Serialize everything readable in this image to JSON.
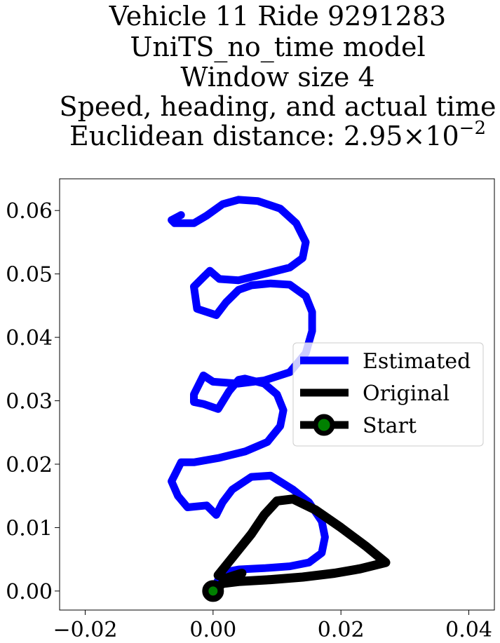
{
  "chart_data": {
    "type": "line",
    "title_lines": [
      "Vehicle 11 Ride 9291283",
      "UniTS_no_time model",
      "Window size 4",
      "Speed, heading, and actual time"
    ],
    "title_distance_prefix": "Euclidean distance: ",
    "title_distance_mantissa": "2.95",
    "title_distance_times": "×",
    "title_distance_base": "10",
    "title_distance_exponent": "−2",
    "xlabel": "",
    "ylabel": "",
    "xlim": [
      -0.024,
      0.044
    ],
    "ylim": [
      -0.003,
      0.065
    ],
    "x_ticks": [
      -0.02,
      0.0,
      0.02,
      0.04
    ],
    "x_tick_labels": [
      "−0.02",
      "0.00",
      "0.02",
      "0.04"
    ],
    "y_ticks": [
      0.0,
      0.01,
      0.02,
      0.03,
      0.04,
      0.05,
      0.06
    ],
    "y_tick_labels": [
      "0.00",
      "0.01",
      "0.02",
      "0.03",
      "0.04",
      "0.05",
      "0.06"
    ],
    "grid": false,
    "legend_position": "center-right",
    "series": [
      {
        "name": "Estimated",
        "color": "#0000ff",
        "points": [
          [
            0.0,
            0.0
          ],
          [
            0.001,
            0.0022
          ],
          [
            0.002,
            0.003
          ],
          [
            0.004,
            0.0034
          ],
          [
            0.008,
            0.0036
          ],
          [
            0.012,
            0.0039
          ],
          [
            0.015,
            0.0045
          ],
          [
            0.017,
            0.006
          ],
          [
            0.0175,
            0.0085
          ],
          [
            0.017,
            0.011
          ],
          [
            0.015,
            0.014
          ],
          [
            0.0125,
            0.016
          ],
          [
            0.009,
            0.0182
          ],
          [
            0.006,
            0.018
          ],
          [
            0.003,
            0.016
          ],
          [
            0.0015,
            0.014
          ],
          [
            0.0005,
            0.012
          ],
          [
            -0.001,
            0.0135
          ],
          [
            -0.004,
            0.0132
          ],
          [
            -0.0055,
            0.015
          ],
          [
            -0.0065,
            0.0173
          ],
          [
            -0.0055,
            0.0193
          ],
          [
            -0.005,
            0.0203
          ],
          [
            -0.003,
            0.0203
          ],
          [
            0.001,
            0.021
          ],
          [
            0.005,
            0.022
          ],
          [
            0.0085,
            0.0235
          ],
          [
            0.0105,
            0.026
          ],
          [
            0.011,
            0.0285
          ],
          [
            0.01,
            0.031
          ],
          [
            0.008,
            0.0327
          ],
          [
            0.005,
            0.0335
          ],
          [
            0.004,
            0.0333
          ],
          [
            0.0025,
            0.0315
          ],
          [
            0.0008,
            0.0287
          ],
          [
            -0.0015,
            0.0295
          ],
          [
            -0.003,
            0.0298
          ],
          [
            -0.003,
            0.031
          ],
          [
            -0.0015,
            0.034
          ],
          [
            0.0,
            0.033
          ],
          [
            0.004,
            0.0327
          ],
          [
            0.008,
            0.0332
          ],
          [
            0.012,
            0.0345
          ],
          [
            0.0145,
            0.0375
          ],
          [
            0.0155,
            0.041
          ],
          [
            0.0155,
            0.044
          ],
          [
            0.0145,
            0.0465
          ],
          [
            0.012,
            0.0483
          ],
          [
            0.009,
            0.0485
          ],
          [
            0.006,
            0.0482
          ],
          [
            0.004,
            0.0475
          ],
          [
            0.002,
            0.0455
          ],
          [
            0.0005,
            0.0435
          ],
          [
            -0.0025,
            0.0445
          ],
          [
            -0.003,
            0.048
          ],
          [
            -0.0015,
            0.0495
          ],
          [
            -0.0005,
            0.0505
          ],
          [
            0.001,
            0.0492
          ],
          [
            0.004,
            0.049
          ],
          [
            0.008,
            0.05
          ],
          [
            0.012,
            0.051
          ],
          [
            0.014,
            0.0525
          ],
          [
            0.0145,
            0.055
          ],
          [
            0.013,
            0.058
          ],
          [
            0.0105,
            0.0603
          ],
          [
            0.007,
            0.0615
          ],
          [
            0.004,
            0.0617
          ],
          [
            0.0015,
            0.061
          ],
          [
            -0.001,
            0.0592
          ],
          [
            -0.003,
            0.058
          ],
          [
            -0.004,
            0.058
          ],
          [
            -0.006,
            0.058
          ],
          [
            -0.0065,
            0.0585
          ],
          [
            -0.005,
            0.0593
          ]
        ]
      },
      {
        "name": "Original",
        "color": "#000000",
        "points": [
          [
            0.0,
            0.0
          ],
          [
            0.0015,
            0.0012
          ],
          [
            0.004,
            0.0015
          ],
          [
            0.009,
            0.0018
          ],
          [
            0.014,
            0.0022
          ],
          [
            0.019,
            0.0028
          ],
          [
            0.023,
            0.0035
          ],
          [
            0.027,
            0.0045
          ],
          [
            0.024,
            0.007
          ],
          [
            0.02,
            0.01
          ],
          [
            0.016,
            0.0128
          ],
          [
            0.0125,
            0.0145
          ],
          [
            0.01,
            0.0142
          ],
          [
            0.008,
            0.012
          ],
          [
            0.006,
            0.009
          ],
          [
            0.004,
            0.0065
          ],
          [
            0.002,
            0.004
          ],
          [
            0.0008,
            0.0025
          ],
          [
            0.002,
            0.002
          ],
          [
            0.0035,
            0.0025
          ],
          [
            0.0045,
            0.0028
          ]
        ]
      }
    ],
    "start_point": {
      "name": "Start",
      "x": 0.0,
      "y": 0.0,
      "outer_color": "#000000",
      "inner_color": "#008000"
    }
  }
}
